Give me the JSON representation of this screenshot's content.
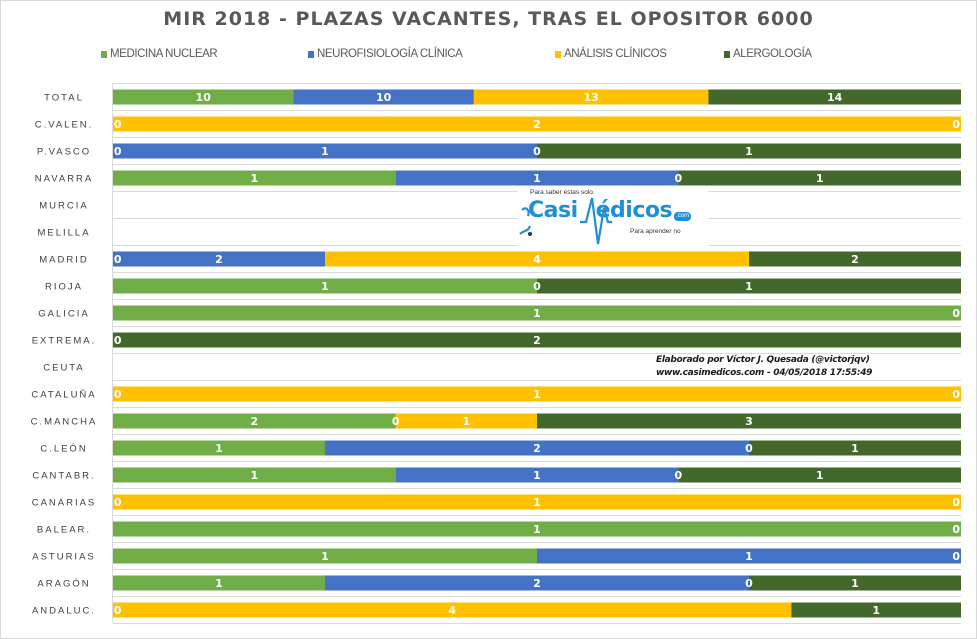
{
  "chart_data": {
    "type": "bar",
    "orientation": "horizontal",
    "stacking": "percent",
    "title": "MIR 2018 - PLAZAS VACANTES, TRAS EL OPOSITOR 6000",
    "xlabel": "",
    "ylabel": "",
    "xlim": [
      0,
      100
    ],
    "grid": true,
    "legend_position": "top",
    "show_data_labels": true,
    "categories": [
      "TOTAL",
      "C.VALEN.",
      "P.VASCO",
      "NAVARRA",
      "MURCIA",
      "MELILLA",
      "MADRID",
      "RIOJA",
      "GALICIA",
      "EXTREMA.",
      "CEUTA",
      "CATALUÑA",
      "C.MANCHA",
      "C.LEÓN",
      "CANTABR.",
      "CANARIAS",
      "BALEAR.",
      "ASTURIAS",
      "ARAGÓN",
      "ANDALUC."
    ],
    "series": [
      {
        "name": "MEDICINA NUCLEAR",
        "color": "#70AD47",
        "values": [
          10,
          0,
          0,
          1,
          null,
          null,
          0,
          1,
          1,
          0,
          null,
          0,
          2,
          1,
          1,
          0,
          1,
          1,
          1,
          0
        ]
      },
      {
        "name": "NEUROFISIOLOGÍA CLÍNICA",
        "color": "#4472C4",
        "values": [
          10,
          0,
          1,
          1,
          null,
          null,
          2,
          0,
          0,
          0,
          null,
          0,
          0,
          2,
          1,
          0,
          0,
          1,
          2,
          0
        ]
      },
      {
        "name": "ANÁLISIS CLÍNICOS",
        "color": "#FFC000",
        "values": [
          13,
          2,
          0,
          0,
          null,
          null,
          4,
          0,
          0,
          0,
          null,
          1,
          1,
          0,
          0,
          1,
          0,
          0,
          0,
          4
        ]
      },
      {
        "name": "ALERGOLOGÍA",
        "color": "#43682B",
        "values": [
          14,
          0,
          1,
          1,
          null,
          null,
          2,
          1,
          0,
          2,
          null,
          0,
          3,
          1,
          1,
          0,
          0,
          0,
          1,
          1
        ]
      }
    ]
  },
  "logo": {
    "tagline_top": "Para saber estas solo.",
    "brand_left": "Casi",
    "brand_right": "édicos",
    "brand_suffix": ".com",
    "tagline_bottom": "Para aprender no"
  },
  "attribution": {
    "line1": "Elaborado por Víctor J. Quesada (@victorjqv)",
    "line2": "www.casimedicos.com - 04/05/2018 17:55:49"
  }
}
